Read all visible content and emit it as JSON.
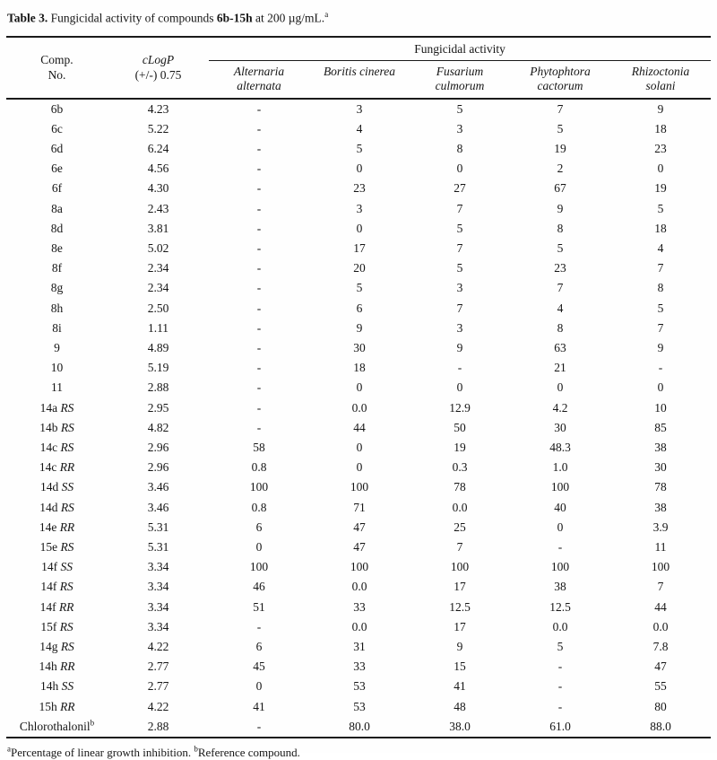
{
  "caption": {
    "label": "Table 3.",
    "text1": " Fungicidal activity of compounds ",
    "compounds": "6b-15h",
    "text2": " at 200 µg/mL.",
    "sup": "a"
  },
  "table": {
    "columns": {
      "comp": [
        "Comp.",
        "No."
      ],
      "clogp": [
        "cLogP",
        "(+/-) 0.75"
      ],
      "group": "Fungicidal activity",
      "species": [
        {
          "line1": "Alternaria",
          "line2": "alternata"
        },
        {
          "line1": "Boritis cinerea",
          "line2": ""
        },
        {
          "line1": "Fusarium",
          "line2": "culmorum"
        },
        {
          "line1": "Phytophtora",
          "line2": "cactorum"
        },
        {
          "line1": "Rhizoctonia",
          "line2": "solani"
        }
      ]
    },
    "rows": [
      {
        "comp": "6b",
        "stereo": "",
        "sup": "",
        "clogp": "4.23",
        "values": [
          "-",
          "3",
          "5",
          "7",
          "9"
        ]
      },
      {
        "comp": "6c",
        "stereo": "",
        "sup": "",
        "clogp": "5.22",
        "values": [
          "-",
          "4",
          "3",
          "5",
          "18"
        ]
      },
      {
        "comp": "6d",
        "stereo": "",
        "sup": "",
        "clogp": "6.24",
        "values": [
          "-",
          "5",
          "8",
          "19",
          "23"
        ]
      },
      {
        "comp": "6e",
        "stereo": "",
        "sup": "",
        "clogp": "4.56",
        "values": [
          "-",
          "0",
          "0",
          "2",
          "0"
        ]
      },
      {
        "comp": "6f",
        "stereo": "",
        "sup": "",
        "clogp": "4.30",
        "values": [
          "-",
          "23",
          "27",
          "67",
          "19"
        ]
      },
      {
        "comp": "8a",
        "stereo": "",
        "sup": "",
        "clogp": "2.43",
        "values": [
          "-",
          "3",
          "7",
          "9",
          "5"
        ]
      },
      {
        "comp": "8d",
        "stereo": "",
        "sup": "",
        "clogp": "3.81",
        "values": [
          "-",
          "0",
          "5",
          "8",
          "18"
        ]
      },
      {
        "comp": "8e",
        "stereo": "",
        "sup": "",
        "clogp": "5.02",
        "values": [
          "-",
          "17",
          "7",
          "5",
          "4"
        ]
      },
      {
        "comp": "8f",
        "stereo": "",
        "sup": "",
        "clogp": "2.34",
        "values": [
          "-",
          "20",
          "5",
          "23",
          "7"
        ]
      },
      {
        "comp": "8g",
        "stereo": "",
        "sup": "",
        "clogp": "2.34",
        "values": [
          "-",
          "5",
          "3",
          "7",
          "8"
        ]
      },
      {
        "comp": "8h",
        "stereo": "",
        "sup": "",
        "clogp": "2.50",
        "values": [
          "-",
          "6",
          "7",
          "4",
          "5"
        ]
      },
      {
        "comp": "8i",
        "stereo": "",
        "sup": "",
        "clogp": "1.11",
        "values": [
          "-",
          "9",
          "3",
          "8",
          "7"
        ]
      },
      {
        "comp": "9",
        "stereo": "",
        "sup": "",
        "clogp": "4.89",
        "values": [
          "-",
          "30",
          "9",
          "63",
          "9"
        ]
      },
      {
        "comp": "10",
        "stereo": "",
        "sup": "",
        "clogp": "5.19",
        "values": [
          "-",
          "18",
          "-",
          "21",
          "-"
        ]
      },
      {
        "comp": "11",
        "stereo": "",
        "sup": "",
        "clogp": "2.88",
        "values": [
          "-",
          "0",
          "0",
          "0",
          "0"
        ]
      },
      {
        "comp": "14a",
        "stereo": "RS",
        "sup": "",
        "clogp": "2.95",
        "values": [
          "-",
          "0.0",
          "12.9",
          "4.2",
          "10"
        ]
      },
      {
        "comp": "14b",
        "stereo": "RS",
        "sup": "",
        "clogp": "4.82",
        "values": [
          "-",
          "44",
          "50",
          "30",
          "85"
        ]
      },
      {
        "comp": "14c",
        "stereo": "RS",
        "sup": "",
        "clogp": "2.96",
        "values": [
          "58",
          "0",
          "19",
          "48.3",
          "38"
        ]
      },
      {
        "comp": "14c",
        "stereo": "RR",
        "sup": "",
        "clogp": "2.96",
        "values": [
          "0.8",
          "0",
          "0.3",
          "1.0",
          "30"
        ]
      },
      {
        "comp": "14d",
        "stereo": "SS",
        "sup": "",
        "clogp": "3.46",
        "values": [
          "100",
          "100",
          "78",
          "100",
          "78"
        ]
      },
      {
        "comp": "14d",
        "stereo": "RS",
        "sup": "",
        "clogp": "3.46",
        "values": [
          "0.8",
          "71",
          "0.0",
          "40",
          "38"
        ]
      },
      {
        "comp": "14e",
        "stereo": "RR",
        "sup": "",
        "clogp": "5.31",
        "values": [
          "6",
          "47",
          "25",
          "0",
          "3.9"
        ]
      },
      {
        "comp": "15e",
        "stereo": "RS",
        "sup": "",
        "clogp": "5.31",
        "values": [
          "0",
          "47",
          "7",
          "-",
          "11"
        ]
      },
      {
        "comp": "14f",
        "stereo": "SS",
        "sup": "",
        "clogp": "3.34",
        "values": [
          "100",
          "100",
          "100",
          "100",
          "100"
        ]
      },
      {
        "comp": "14f",
        "stereo": "RS",
        "sup": "",
        "clogp": "3.34",
        "values": [
          "46",
          "0.0",
          "17",
          "38",
          "7"
        ]
      },
      {
        "comp": "14f",
        "stereo": "RR",
        "sup": "",
        "clogp": "3.34",
        "values": [
          "51",
          "33",
          "12.5",
          "12.5",
          "44"
        ]
      },
      {
        "comp": "15f",
        "stereo": "RS",
        "sup": "",
        "clogp": "3.34",
        "values": [
          "-",
          "0.0",
          "17",
          "0.0",
          "0.0"
        ]
      },
      {
        "comp": "14g",
        "stereo": "RS",
        "sup": "",
        "clogp": "4.22",
        "values": [
          "6",
          "31",
          "9",
          "5",
          "7.8"
        ]
      },
      {
        "comp": "14h",
        "stereo": "RR",
        "sup": "",
        "clogp": "2.77",
        "values": [
          "45",
          "33",
          "15",
          "-",
          "47"
        ]
      },
      {
        "comp": "14h",
        "stereo": "SS",
        "sup": "",
        "clogp": "2.77",
        "values": [
          "0",
          "53",
          "41",
          "-",
          "55"
        ]
      },
      {
        "comp": "15h",
        "stereo": "RR",
        "sup": "",
        "clogp": "4.22",
        "values": [
          "41",
          "53",
          "48",
          "-",
          "80"
        ]
      },
      {
        "comp": "Chlorothalonil",
        "stereo": "",
        "sup": "b",
        "clogp": "2.88",
        "values": [
          "-",
          "80.0",
          "38.0",
          "61.0",
          "88.0"
        ]
      }
    ]
  },
  "footnote": {
    "sup_a": "a",
    "text_a": "Percentage of linear growth inhibition. ",
    "sup_b": "b",
    "text_b": "Reference compound."
  }
}
